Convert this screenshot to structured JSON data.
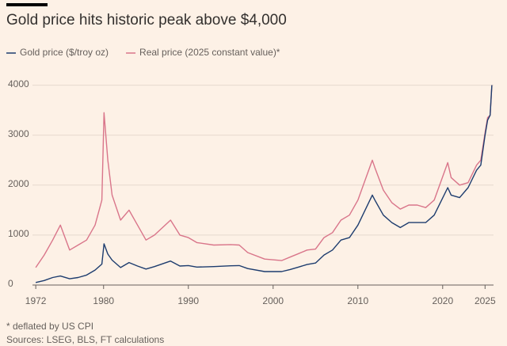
{
  "chart_data": {
    "type": "line",
    "title": "Gold price hits historic peak above $4,000",
    "x": [
      1972,
      1973,
      1974,
      1974.9,
      1976,
      1977,
      1978,
      1979,
      1979.8,
      1980.05,
      1980.5,
      1981,
      1982,
      1983,
      1984,
      1985,
      1986,
      1987.9,
      1989,
      1990,
      1991,
      1993,
      1995,
      1996,
      1997,
      1999,
      2001,
      2002,
      2003,
      2004,
      2005,
      2006,
      2007,
      2008,
      2009,
      2010,
      2011.7,
      2012,
      2013,
      2014,
      2015,
      2016,
      2017,
      2018,
      2019,
      2020.6,
      2021,
      2022,
      2023,
      2024,
      2024.5,
      2025,
      2025.3,
      2025.6,
      2025.8
    ],
    "series": [
      {
        "name": "Gold price ($/troy oz)",
        "color": "#1d3c6e",
        "values": [
          50,
          90,
          150,
          180,
          125,
          150,
          200,
          300,
          420,
          825,
          620,
          500,
          350,
          450,
          380,
          320,
          370,
          480,
          380,
          390,
          360,
          370,
          385,
          390,
          330,
          270,
          270,
          310,
          360,
          410,
          440,
          600,
          700,
          900,
          950,
          1200,
          1800,
          1700,
          1400,
          1250,
          1150,
          1250,
          1250,
          1250,
          1400,
          1950,
          1800,
          1750,
          1950,
          2300,
          2400,
          3000,
          3300,
          3400,
          4000
        ]
      },
      {
        "name": "Real price (2025 constant value)*",
        "color": "#d9758a",
        "values": [
          350,
          600,
          900,
          1200,
          700,
          800,
          900,
          1200,
          1700,
          3450,
          2500,
          1800,
          1300,
          1500,
          1200,
          900,
          1000,
          1300,
          1000,
          950,
          850,
          800,
          810,
          800,
          650,
          520,
          490,
          560,
          630,
          700,
          720,
          950,
          1050,
          1300,
          1400,
          1700,
          2500,
          2350,
          1900,
          1650,
          1520,
          1600,
          1600,
          1550,
          1700,
          2450,
          2150,
          2000,
          2050,
          2400,
          2500,
          3050,
          3350,
          3400,
          4000
        ]
      }
    ],
    "xlim": [
      1971.8,
      2026
    ],
    "xticks": [
      1972,
      1980,
      1990,
      2000,
      2010,
      2020,
      2025
    ],
    "ylim": [
      0,
      4200
    ],
    "yticks": [
      0,
      1000,
      2000,
      3000,
      4000
    ],
    "grid": true,
    "footnote": "* deflated by US CPI",
    "source": "Sources: LSEG, BLS, FT calculations"
  }
}
